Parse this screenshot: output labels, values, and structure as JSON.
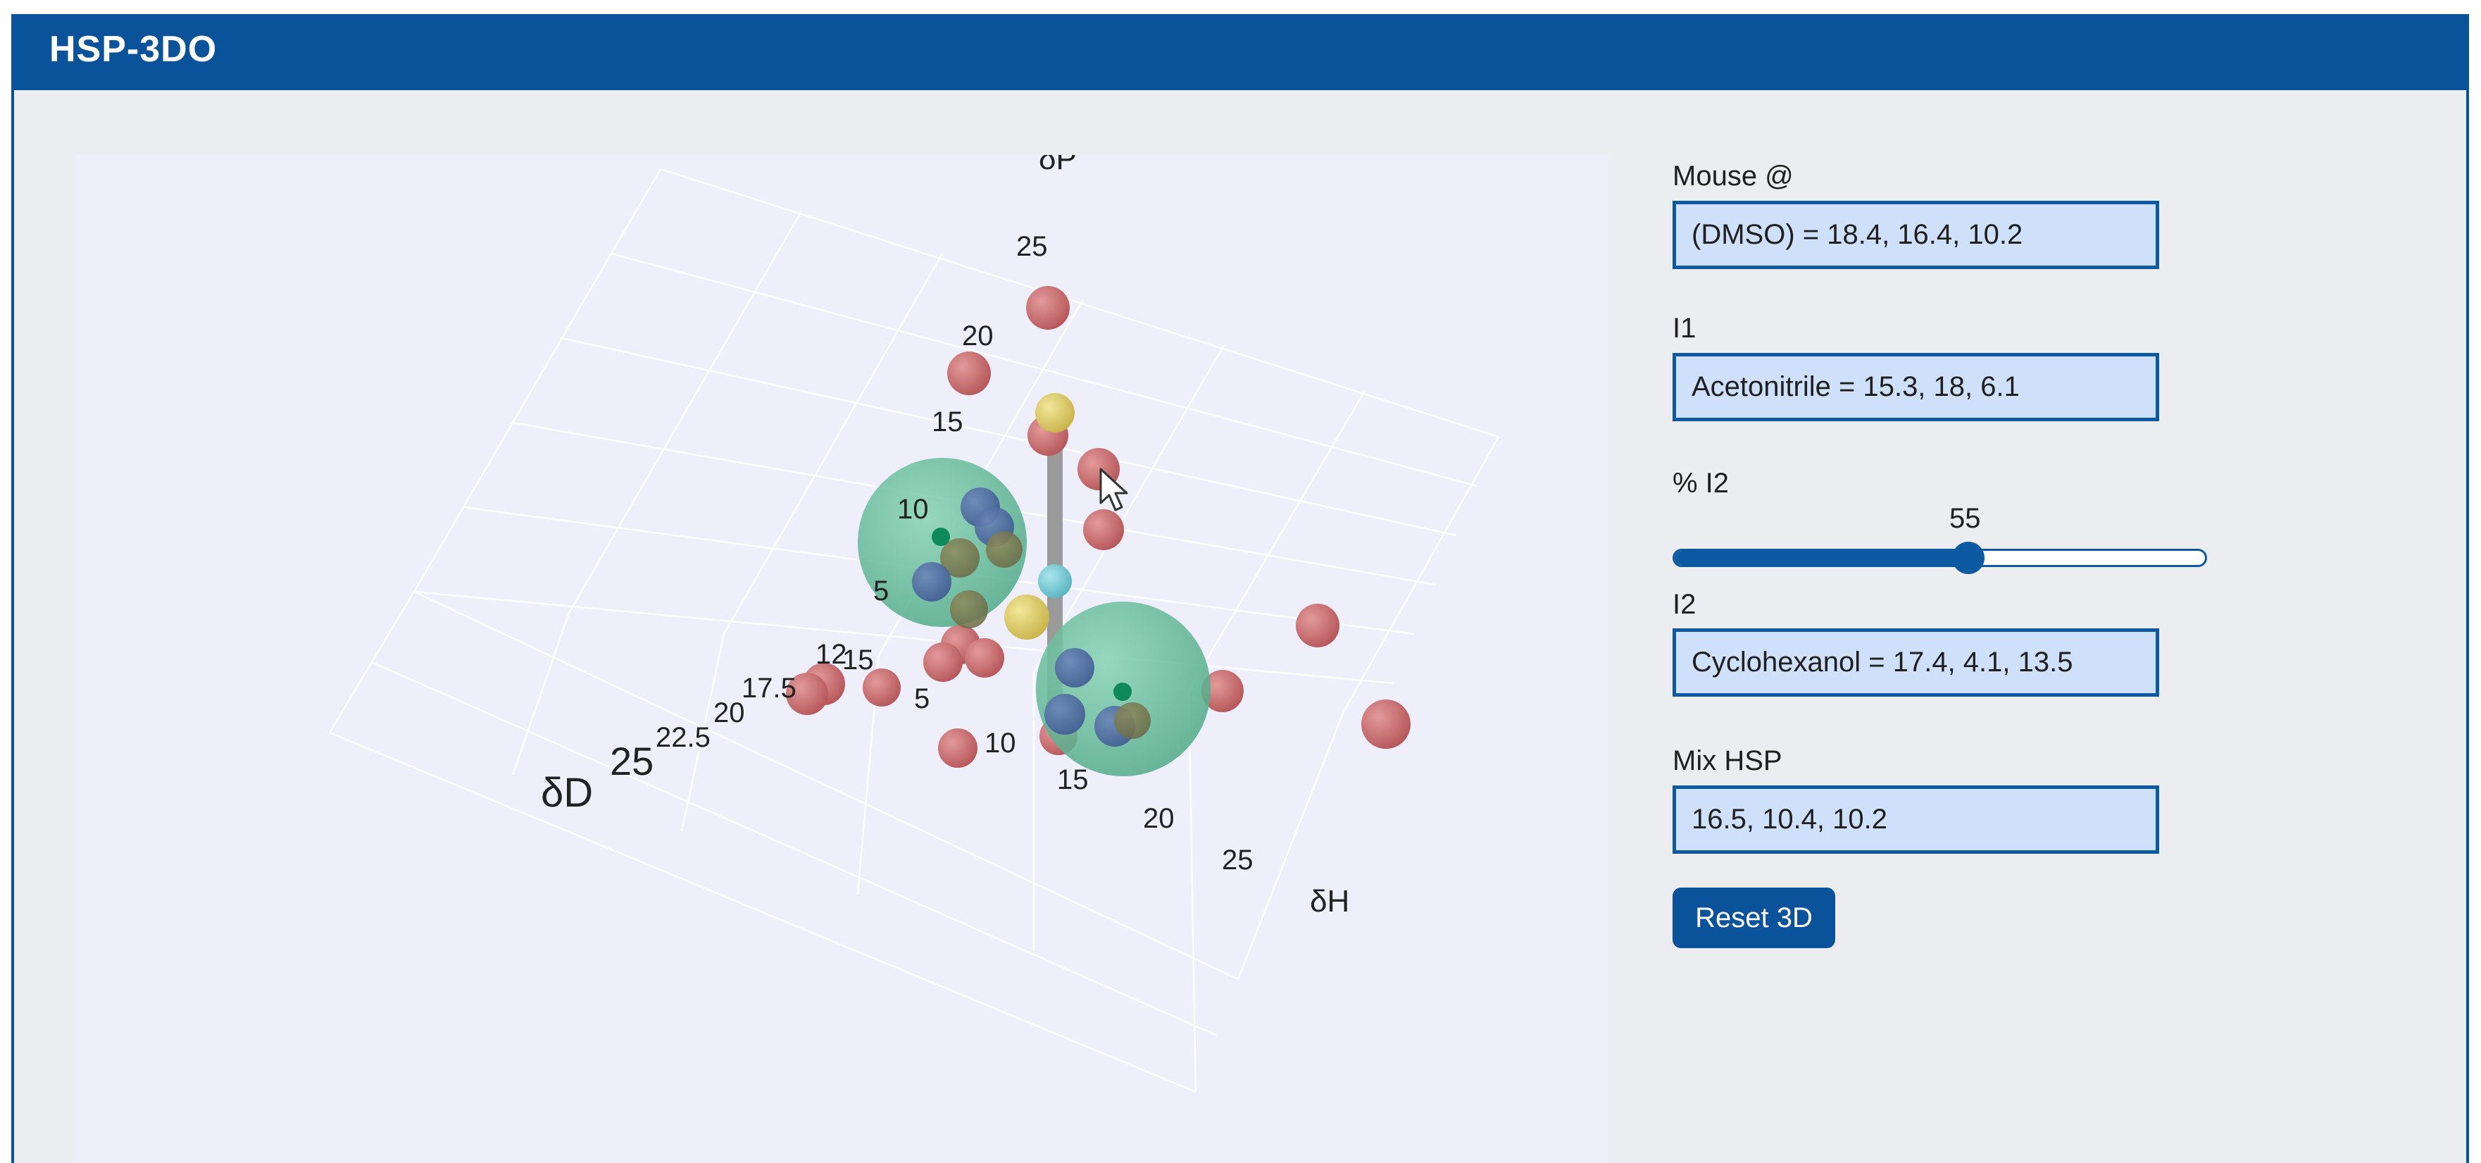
{
  "app": {
    "title": "HSP-3DO"
  },
  "panel": {
    "mouse_label": "Mouse @",
    "mouse_value": "(DMSO) = 18.4, 16.4, 10.2",
    "i1_label": "I1",
    "i1_value": "Acetonitrile = 15.3, 18, 6.1",
    "pct_label": "% I2",
    "pct_value": "55",
    "pct_fraction": 0.55,
    "i2_label": "I2",
    "i2_value": "Cyclohexanol = 17.4, 4.1, 13.5",
    "mix_label": "Mix HSP",
    "mix_value": "16.5, 10.4, 10.2",
    "reset_label": "Reset 3D"
  },
  "plot": {
    "axis_dD_title": "δD",
    "axis_dH_title": "δH",
    "axis_dP_title": "δP",
    "dP_ticks": [
      "5",
      "10",
      "15",
      "20",
      "25"
    ],
    "dH_ticks": [
      "5",
      "10",
      "15",
      "20",
      "25"
    ],
    "dD_ticks": [
      "12",
      "15",
      "17.5",
      "20",
      "22.5",
      "25"
    ],
    "colors": {
      "solvent": "#c7696b",
      "mix_point": "#d8c45b",
      "sphere": "#5fbf9a",
      "center": "#0e8a5a",
      "highlight": "#6fc8d6",
      "tie_line": "#9a9a9a",
      "grid": "#ffffff"
    }
  }
}
